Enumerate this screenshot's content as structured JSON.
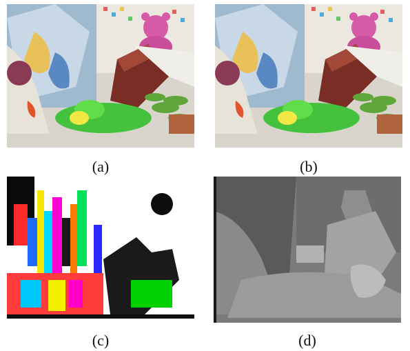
{
  "figure": {
    "panels": [
      {
        "id": "a",
        "caption": "(a)"
      },
      {
        "id": "b",
        "caption": "(b)"
      },
      {
        "id": "c",
        "caption": "(c)"
      },
      {
        "id": "d",
        "caption": "(d)"
      }
    ]
  }
}
